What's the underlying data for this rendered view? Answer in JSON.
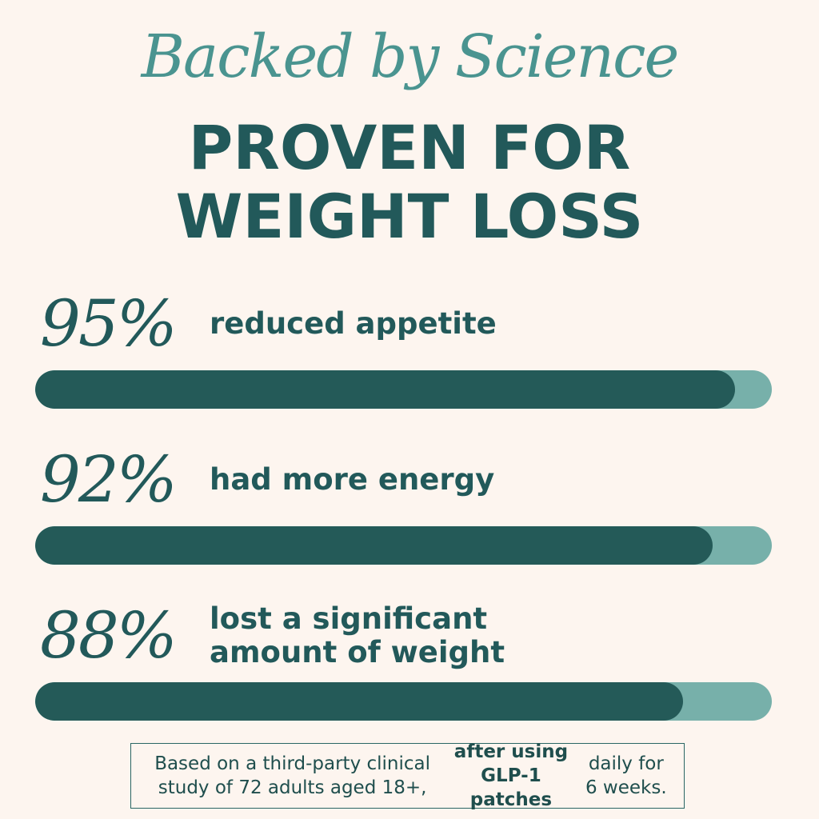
{
  "chart_data": {
    "type": "bar",
    "title": "Backed by Science",
    "subtitle": "PROVEN FOR WEIGHT LOSS",
    "categories": [
      "reduced appetite",
      "had more energy",
      "lost a significant amount of weight"
    ],
    "values": [
      95,
      92,
      88
    ],
    "value_labels": [
      "95%",
      "92%",
      "88%"
    ],
    "color": "#245a58",
    "track_color": "#77b0aa",
    "xlim": [
      0,
      100
    ],
    "note": [
      "Based on a third-party clinical study of 72 adults aged 18+, ",
      "after using GLP-1 patches",
      " daily for 6 weeks."
    ]
  }
}
